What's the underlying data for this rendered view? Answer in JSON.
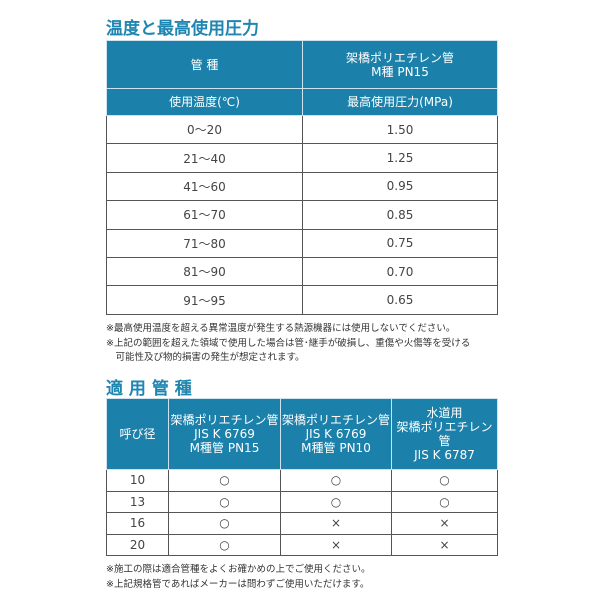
{
  "section1": {
    "title": "温度と最高使用圧力",
    "header": {
      "col1": "管 種",
      "col2_line1": "架橋ポリエチレン管",
      "col2_line2": "M種 PN15",
      "sub1": "使用温度(℃)",
      "sub2": "最高使用圧力(MPa)"
    },
    "rows": [
      {
        "temp": "0～20",
        "pressure": "1.50"
      },
      {
        "temp": "21～40",
        "pressure": "1.25"
      },
      {
        "temp": "41～60",
        "pressure": "0.95"
      },
      {
        "temp": "61～70",
        "pressure": "0.85"
      },
      {
        "temp": "71～80",
        "pressure": "0.75"
      },
      {
        "temp": "81～90",
        "pressure": "0.70"
      },
      {
        "temp": "91～95",
        "pressure": "0.65"
      }
    ],
    "notes": [
      "※最高使用温度を超える異常温度が発生する熱源機器には使用しないでください。",
      "※上記の範囲を超えた領域で使用した場合は管･継手が破損し、重傷や火傷等を受ける",
      "　可能性及び物的損害の発生が想定されます。"
    ]
  },
  "section2": {
    "title": "適 用 管 種",
    "header": [
      "呼び径",
      [
        "架橋ポリエチレン管",
        "JIS K 6769",
        "M種管 PN15"
      ],
      [
        "架橋ポリエチレン管",
        "JIS K 6769",
        "M種管 PN10"
      ],
      [
        "水道用",
        "架橋ポリエチレン管",
        "JIS K 6787"
      ]
    ],
    "rows": [
      [
        "10",
        "○",
        "○",
        "○"
      ],
      [
        "13",
        "○",
        "○",
        "○"
      ],
      [
        "16",
        "○",
        "×",
        "×"
      ],
      [
        "20",
        "○",
        "×",
        "×"
      ]
    ],
    "notes": [
      "※施工の際は適合管種をよくお確かめの上でご使用ください。",
      "※上記規格管であればメーカーは問わずご使用いただけます。"
    ]
  }
}
